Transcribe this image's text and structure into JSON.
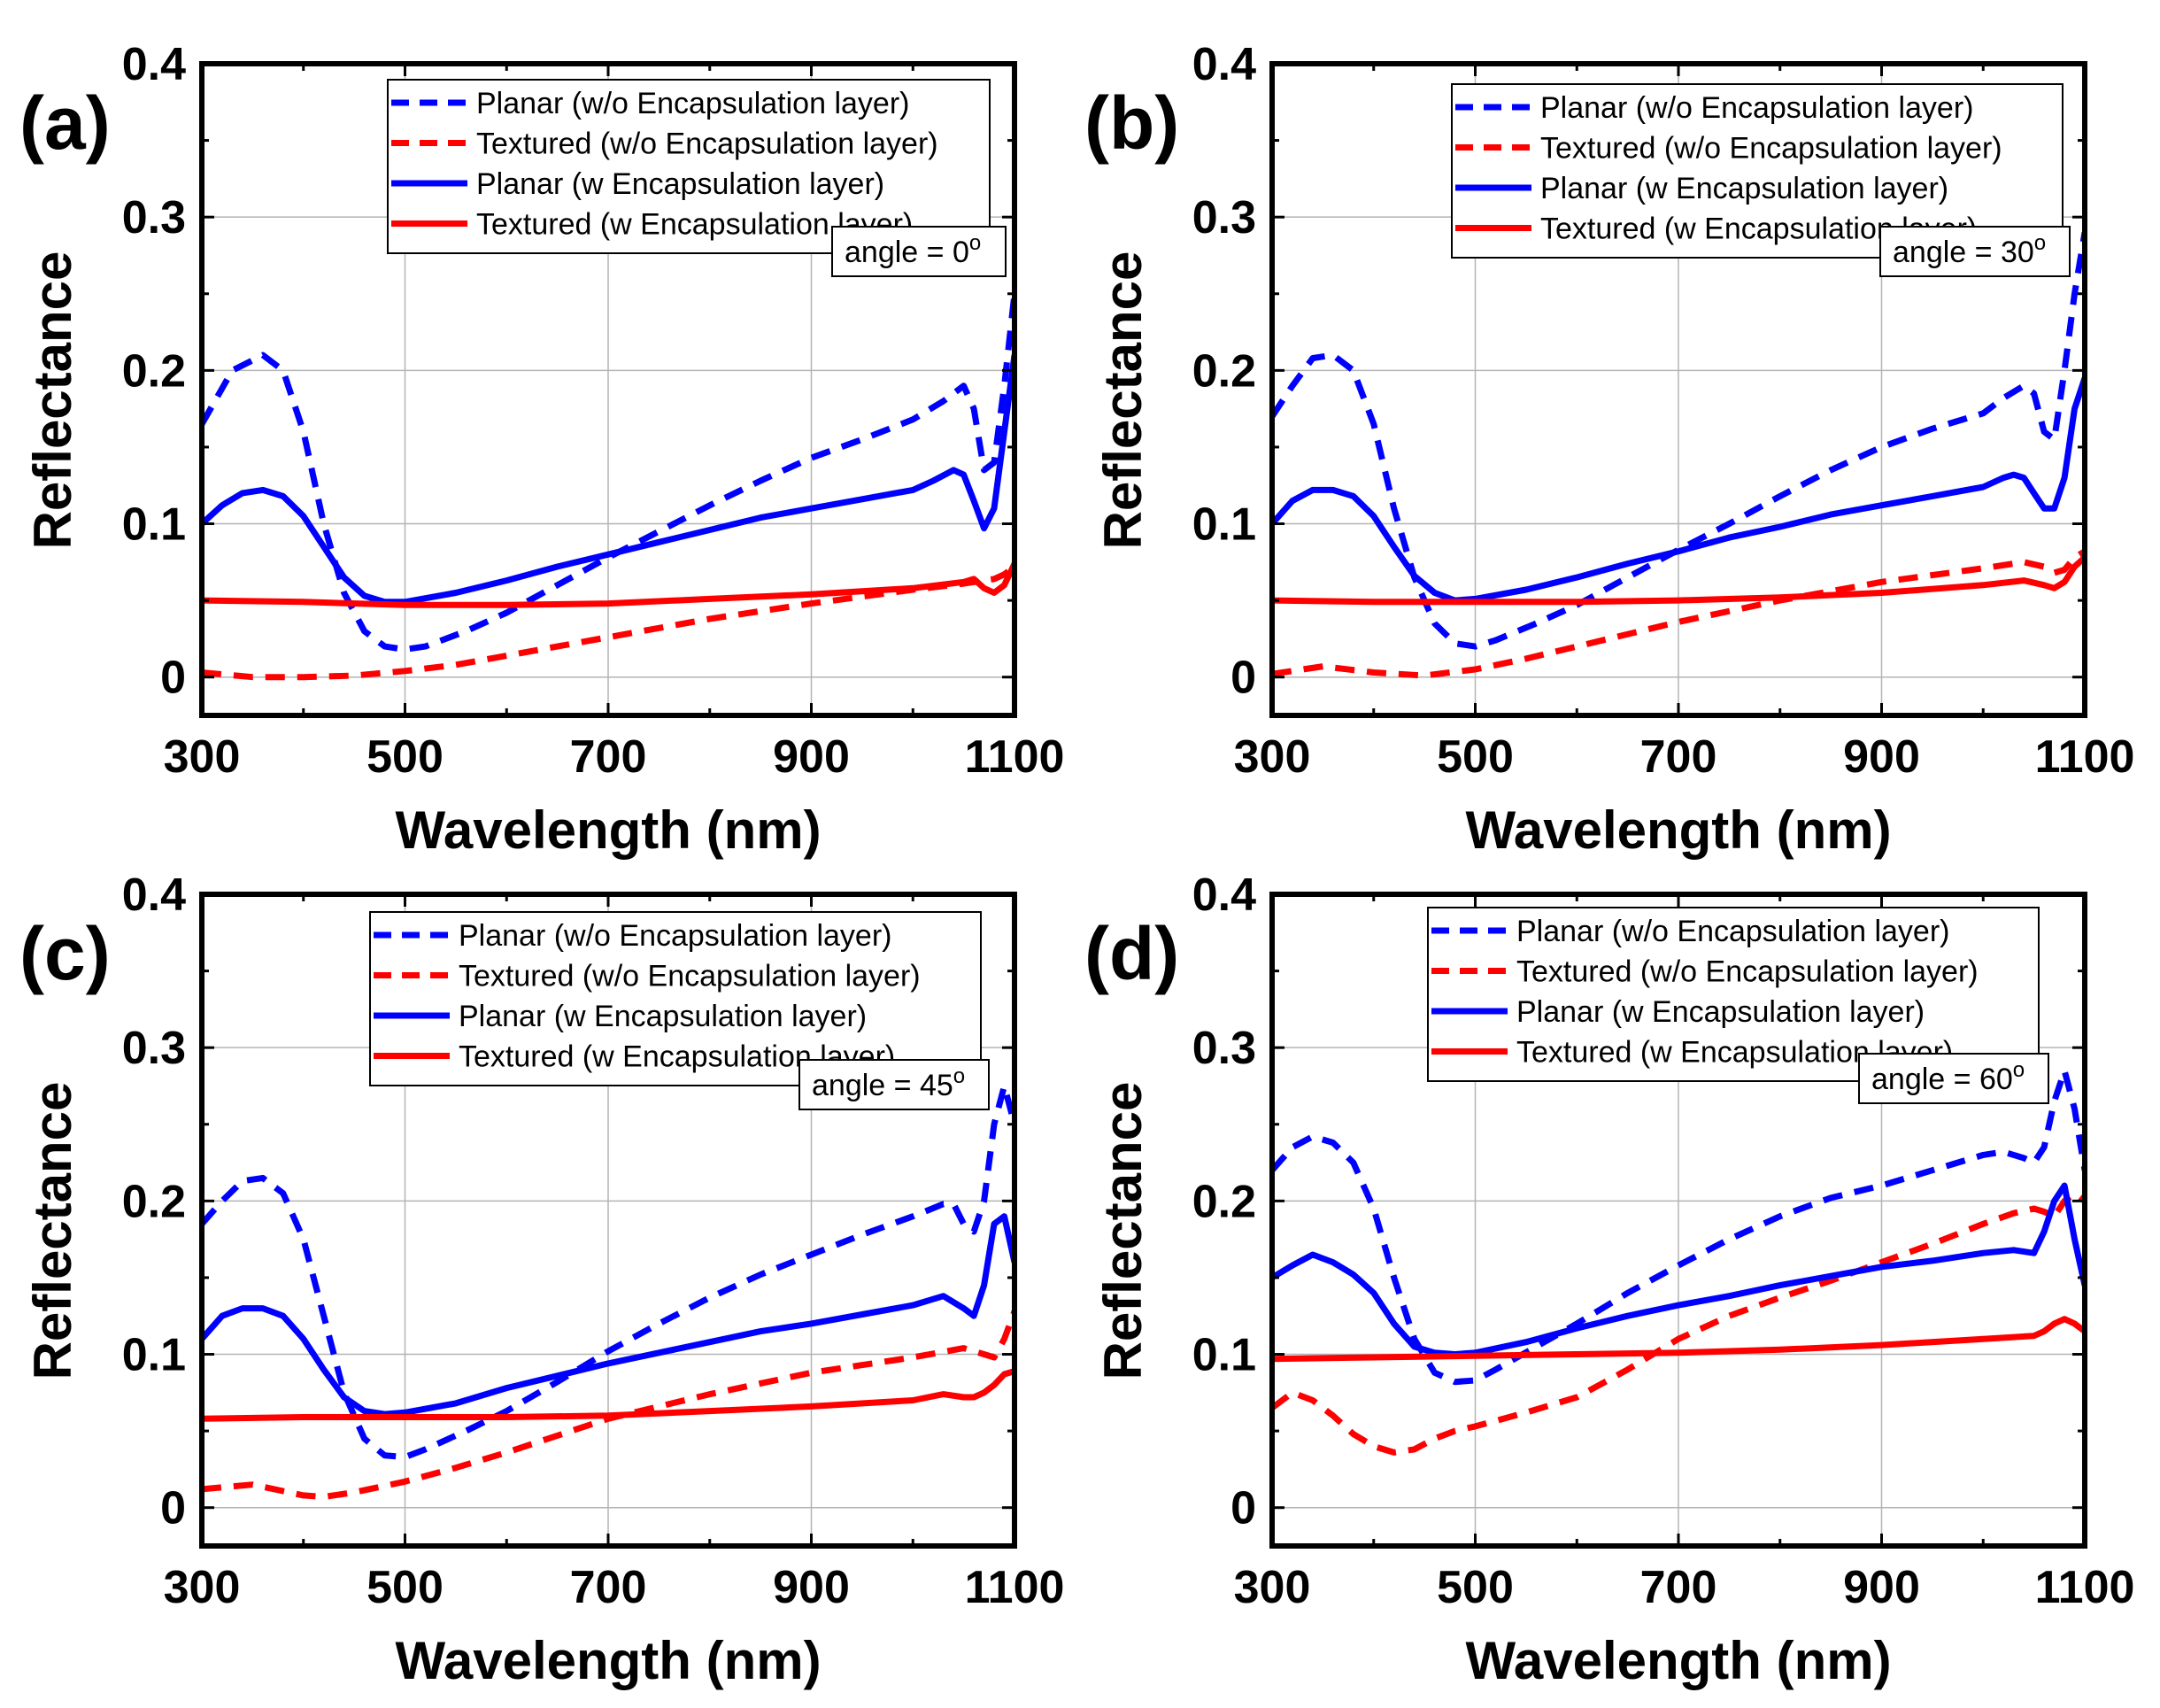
{
  "colors": {
    "blue": "#0000ff",
    "red": "#ff0000",
    "axis": "#000000",
    "grid": "#b4b4b4"
  },
  "chart_data": [
    {
      "type": "line",
      "panel": "(a)",
      "annotation": "angle = 0",
      "annotation_sup": "o",
      "xlabel": "Wavelength (nm)",
      "ylabel": "Reflectance",
      "xlim": [
        300,
        1100
      ],
      "ylim": [
        -0.025,
        0.4
      ],
      "xticks": [
        "300",
        "500",
        "700",
        "900",
        "1100"
      ],
      "yticks": [
        "0",
        "0.1",
        "0.2",
        "0.3",
        "0.4"
      ],
      "grid": true,
      "legend_position": "top-right",
      "series": [
        {
          "name": "Planar (w/o Encapsulation layer)",
          "color": "#0000ff",
          "style": "dashed",
          "x": [
            300,
            330,
            360,
            380,
            400,
            420,
            440,
            460,
            480,
            500,
            520,
            560,
            600,
            650,
            700,
            750,
            800,
            850,
            900,
            950,
            1000,
            1030,
            1050,
            1060,
            1070,
            1080,
            1090,
            1100
          ],
          "y": [
            0.165,
            0.2,
            0.21,
            0.2,
            0.16,
            0.1,
            0.055,
            0.03,
            0.02,
            0.018,
            0.02,
            0.03,
            0.042,
            0.06,
            0.078,
            0.095,
            0.112,
            0.128,
            0.143,
            0.155,
            0.168,
            0.18,
            0.19,
            0.175,
            0.135,
            0.14,
            0.19,
            0.25
          ]
        },
        {
          "name": "Textured (w/o Encapsulation layer)",
          "color": "#ff0000",
          "style": "dashed",
          "x": [
            300,
            350,
            400,
            450,
            500,
            550,
            600,
            700,
            800,
            900,
            1000,
            1050,
            1070,
            1080,
            1090,
            1100
          ],
          "y": [
            0.003,
            0.0,
            0.0,
            0.001,
            0.004,
            0.008,
            0.014,
            0.026,
            0.038,
            0.048,
            0.057,
            0.061,
            0.063,
            0.064,
            0.067,
            0.072
          ]
        },
        {
          "name": "Planar (w Encapsulation layer)",
          "color": "#0000ff",
          "style": "solid",
          "x": [
            300,
            320,
            340,
            360,
            380,
            400,
            420,
            440,
            460,
            480,
            500,
            550,
            600,
            650,
            700,
            750,
            800,
            850,
            900,
            950,
            1000,
            1020,
            1040,
            1050,
            1060,
            1070,
            1080,
            1090,
            1100
          ],
          "y": [
            0.1,
            0.112,
            0.12,
            0.122,
            0.118,
            0.105,
            0.085,
            0.065,
            0.053,
            0.049,
            0.049,
            0.055,
            0.063,
            0.072,
            0.08,
            0.088,
            0.096,
            0.104,
            0.11,
            0.116,
            0.122,
            0.128,
            0.135,
            0.132,
            0.115,
            0.097,
            0.11,
            0.16,
            0.21
          ]
        },
        {
          "name": "Textured (w Encapsulation layer)",
          "color": "#ff0000",
          "style": "solid",
          "x": [
            300,
            400,
            500,
            600,
            700,
            800,
            900,
            1000,
            1050,
            1060,
            1070,
            1080,
            1090,
            1100
          ],
          "y": [
            0.05,
            0.049,
            0.047,
            0.047,
            0.048,
            0.051,
            0.054,
            0.058,
            0.062,
            0.064,
            0.058,
            0.055,
            0.06,
            0.074
          ]
        }
      ]
    },
    {
      "type": "line",
      "panel": "(b)",
      "annotation": "angle = 30",
      "annotation_sup": "o",
      "xlabel": "Wavelength (nm)",
      "ylabel": "Reflectance",
      "xlim": [
        300,
        1100
      ],
      "ylim": [
        -0.025,
        0.4
      ],
      "xticks": [
        "300",
        "500",
        "700",
        "900",
        "1100"
      ],
      "yticks": [
        "0",
        "0.1",
        "0.2",
        "0.3",
        "0.4"
      ],
      "grid": true,
      "legend_position": "top-right",
      "series": [
        {
          "name": "Planar (w/o Encapsulation layer)",
          "color": "#0000ff",
          "style": "dashed",
          "x": [
            300,
            320,
            340,
            360,
            380,
            400,
            420,
            440,
            460,
            480,
            500,
            520,
            560,
            600,
            650,
            700,
            750,
            800,
            850,
            900,
            950,
            1000,
            1020,
            1040,
            1050,
            1060,
            1070,
            1080,
            1090,
            1100
          ],
          "y": [
            0.17,
            0.19,
            0.208,
            0.21,
            0.2,
            0.165,
            0.11,
            0.065,
            0.035,
            0.022,
            0.02,
            0.024,
            0.035,
            0.047,
            0.065,
            0.083,
            0.1,
            0.118,
            0.135,
            0.15,
            0.162,
            0.172,
            0.182,
            0.19,
            0.185,
            0.16,
            0.155,
            0.2,
            0.25,
            0.29
          ]
        },
        {
          "name": "Textured (w/o Encapsulation layer)",
          "color": "#ff0000",
          "style": "dashed",
          "x": [
            300,
            350,
            400,
            450,
            500,
            550,
            600,
            700,
            800,
            900,
            1000,
            1040,
            1060,
            1070,
            1080,
            1090,
            1100
          ],
          "y": [
            0.002,
            0.007,
            0.003,
            0.001,
            0.005,
            0.012,
            0.02,
            0.036,
            0.05,
            0.062,
            0.071,
            0.075,
            0.072,
            0.068,
            0.07,
            0.078,
            0.082
          ]
        },
        {
          "name": "Planar (w Encapsulation layer)",
          "color": "#0000ff",
          "style": "solid",
          "x": [
            300,
            320,
            340,
            360,
            380,
            400,
            420,
            440,
            460,
            480,
            500,
            550,
            600,
            650,
            700,
            750,
            800,
            850,
            900,
            950,
            1000,
            1020,
            1030,
            1040,
            1050,
            1060,
            1070,
            1080,
            1090,
            1100
          ],
          "y": [
            0.1,
            0.115,
            0.122,
            0.122,
            0.118,
            0.105,
            0.085,
            0.066,
            0.055,
            0.05,
            0.051,
            0.057,
            0.065,
            0.074,
            0.082,
            0.091,
            0.098,
            0.106,
            0.112,
            0.118,
            0.124,
            0.13,
            0.132,
            0.13,
            0.12,
            0.11,
            0.11,
            0.13,
            0.175,
            0.195
          ]
        },
        {
          "name": "Textured (w Encapsulation layer)",
          "color": "#ff0000",
          "style": "solid",
          "x": [
            300,
            400,
            500,
            600,
            700,
            800,
            900,
            1000,
            1040,
            1060,
            1070,
            1080,
            1090,
            1100
          ],
          "y": [
            0.05,
            0.049,
            0.049,
            0.049,
            0.05,
            0.052,
            0.055,
            0.06,
            0.063,
            0.06,
            0.058,
            0.062,
            0.072,
            0.078
          ]
        }
      ]
    },
    {
      "type": "line",
      "panel": "(c)",
      "annotation": "angle = 45",
      "annotation_sup": "o",
      "xlabel": "Wavelength (nm)",
      "ylabel": "Reflectance",
      "xlim": [
        300,
        1100
      ],
      "ylim": [
        -0.025,
        0.4
      ],
      "xticks": [
        "300",
        "500",
        "700",
        "900",
        "1100"
      ],
      "yticks": [
        "0",
        "0.1",
        "0.2",
        "0.3",
        "0.4"
      ],
      "grid": true,
      "legend_position": "top-right",
      "series": [
        {
          "name": "Planar (w/o Encapsulation layer)",
          "color": "#0000ff",
          "style": "dashed",
          "x": [
            300,
            320,
            340,
            360,
            380,
            400,
            420,
            440,
            460,
            480,
            500,
            520,
            560,
            600,
            650,
            700,
            750,
            800,
            850,
            900,
            950,
            1000,
            1030,
            1040,
            1050,
            1060,
            1070,
            1080,
            1090,
            1100
          ],
          "y": [
            0.185,
            0.2,
            0.213,
            0.215,
            0.205,
            0.175,
            0.125,
            0.075,
            0.045,
            0.034,
            0.033,
            0.038,
            0.05,
            0.063,
            0.082,
            0.102,
            0.12,
            0.137,
            0.152,
            0.165,
            0.178,
            0.19,
            0.198,
            0.198,
            0.185,
            0.18,
            0.2,
            0.25,
            0.275,
            0.25
          ]
        },
        {
          "name": "Textured (w/o Encapsulation layer)",
          "color": "#ff0000",
          "style": "dashed",
          "x": [
            300,
            350,
            400,
            420,
            450,
            500,
            550,
            600,
            700,
            800,
            900,
            1000,
            1050,
            1070,
            1080,
            1090,
            1100
          ],
          "y": [
            0.012,
            0.015,
            0.008,
            0.007,
            0.01,
            0.017,
            0.026,
            0.036,
            0.058,
            0.074,
            0.088,
            0.098,
            0.104,
            0.1,
            0.098,
            0.11,
            0.128
          ]
        },
        {
          "name": "Planar (w Encapsulation layer)",
          "color": "#0000ff",
          "style": "solid",
          "x": [
            300,
            320,
            340,
            360,
            380,
            400,
            420,
            440,
            460,
            480,
            500,
            550,
            600,
            650,
            700,
            750,
            800,
            850,
            900,
            950,
            1000,
            1030,
            1050,
            1060,
            1070,
            1080,
            1090,
            1100
          ],
          "y": [
            0.11,
            0.125,
            0.13,
            0.13,
            0.125,
            0.11,
            0.09,
            0.072,
            0.063,
            0.061,
            0.062,
            0.068,
            0.078,
            0.086,
            0.094,
            0.101,
            0.108,
            0.115,
            0.12,
            0.126,
            0.132,
            0.138,
            0.13,
            0.125,
            0.145,
            0.185,
            0.19,
            0.16
          ]
        },
        {
          "name": "Textured (w Encapsulation layer)",
          "color": "#ff0000",
          "style": "solid",
          "x": [
            300,
            400,
            500,
            600,
            700,
            800,
            900,
            1000,
            1030,
            1050,
            1060,
            1070,
            1080,
            1090,
            1100
          ],
          "y": [
            0.058,
            0.059,
            0.059,
            0.059,
            0.06,
            0.063,
            0.066,
            0.07,
            0.074,
            0.072,
            0.072,
            0.075,
            0.08,
            0.087,
            0.089
          ]
        }
      ]
    },
    {
      "type": "line",
      "panel": "(d)",
      "annotation": "angle = 60",
      "annotation_sup": "o",
      "xlabel": "Wavelength (nm)",
      "ylabel": "Reflectance",
      "xlim": [
        300,
        1100
      ],
      "ylim": [
        -0.025,
        0.4
      ],
      "xticks": [
        "300",
        "500",
        "700",
        "900",
        "1100"
      ],
      "yticks": [
        "0",
        "0.1",
        "0.2",
        "0.3",
        "0.4"
      ],
      "grid": true,
      "legend_position": "top-right",
      "series": [
        {
          "name": "Planar (w/o Encapsulation layer)",
          "color": "#0000ff",
          "style": "dashed",
          "x": [
            300,
            320,
            340,
            360,
            380,
            400,
            420,
            440,
            460,
            480,
            500,
            520,
            560,
            600,
            650,
            700,
            750,
            800,
            850,
            900,
            950,
            1000,
            1020,
            1040,
            1050,
            1060,
            1070,
            1080,
            1090,
            1100
          ],
          "y": [
            0.22,
            0.235,
            0.242,
            0.238,
            0.225,
            0.195,
            0.15,
            0.11,
            0.088,
            0.082,
            0.083,
            0.09,
            0.105,
            0.12,
            0.14,
            0.158,
            0.175,
            0.19,
            0.202,
            0.21,
            0.22,
            0.23,
            0.232,
            0.228,
            0.225,
            0.235,
            0.265,
            0.285,
            0.26,
            0.22
          ]
        },
        {
          "name": "Textured (w/o Encapsulation layer)",
          "color": "#ff0000",
          "style": "dashed",
          "x": [
            300,
            320,
            340,
            360,
            380,
            400,
            420,
            440,
            460,
            480,
            500,
            550,
            600,
            650,
            700,
            750,
            800,
            850,
            900,
            950,
            1000,
            1030,
            1050,
            1060,
            1070,
            1080,
            1090,
            1100
          ],
          "y": [
            0.065,
            0.075,
            0.07,
            0.06,
            0.048,
            0.04,
            0.036,
            0.038,
            0.045,
            0.05,
            0.053,
            0.062,
            0.072,
            0.09,
            0.11,
            0.125,
            0.137,
            0.148,
            0.16,
            0.172,
            0.185,
            0.192,
            0.195,
            0.193,
            0.19,
            0.2,
            0.205,
            0.2
          ]
        },
        {
          "name": "Planar (w Encapsulation layer)",
          "color": "#0000ff",
          "style": "solid",
          "x": [
            300,
            320,
            340,
            360,
            380,
            400,
            420,
            440,
            460,
            480,
            500,
            550,
            600,
            650,
            700,
            750,
            800,
            850,
            900,
            950,
            1000,
            1030,
            1050,
            1060,
            1070,
            1080,
            1090,
            1100
          ],
          "y": [
            0.15,
            0.158,
            0.165,
            0.16,
            0.152,
            0.14,
            0.12,
            0.105,
            0.101,
            0.1,
            0.101,
            0.108,
            0.117,
            0.125,
            0.132,
            0.138,
            0.145,
            0.151,
            0.157,
            0.161,
            0.166,
            0.168,
            0.166,
            0.18,
            0.2,
            0.21,
            0.175,
            0.145
          ]
        },
        {
          "name": "Textured (w Encapsulation layer)",
          "color": "#ff0000",
          "style": "solid",
          "x": [
            300,
            400,
            500,
            600,
            700,
            800,
            900,
            1000,
            1050,
            1060,
            1070,
            1080,
            1090,
            1100
          ],
          "y": [
            0.097,
            0.098,
            0.099,
            0.1,
            0.101,
            0.103,
            0.106,
            0.11,
            0.112,
            0.115,
            0.12,
            0.123,
            0.12,
            0.115
          ]
        }
      ]
    }
  ]
}
